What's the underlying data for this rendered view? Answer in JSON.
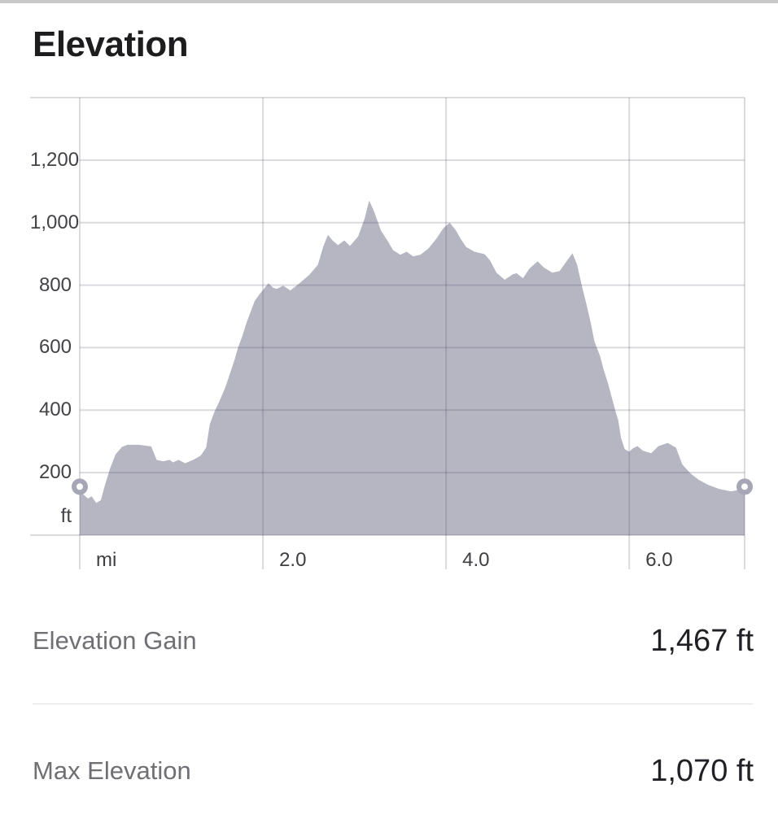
{
  "header": {
    "title": "Elevation"
  },
  "chart_data": {
    "type": "area",
    "title": "Elevation",
    "x_unit": "mi",
    "y_unit": "ft",
    "xlim": [
      0,
      7.26
    ],
    "ylim": [
      0,
      1400
    ],
    "grid": true,
    "y_ticks": [
      1200,
      1000,
      800,
      600,
      400,
      200
    ],
    "y_tick_labels": [
      "1,200",
      "1,000",
      "800",
      "600",
      "400",
      "200"
    ],
    "x_ticks": [
      {
        "value": 0,
        "label": "mi"
      },
      {
        "value": 2,
        "label": "2.0"
      },
      {
        "value": 4,
        "label": "4.0"
      },
      {
        "value": 6,
        "label": "6.0"
      }
    ],
    "x_grid": [
      0,
      2,
      4,
      6,
      7.26
    ],
    "series": [
      {
        "name": "elevation-profile",
        "x": [
          0.0,
          0.04,
          0.09,
          0.13,
          0.18,
          0.23,
          0.27,
          0.33,
          0.39,
          0.46,
          0.52,
          0.64,
          0.78,
          0.84,
          0.91,
          0.98,
          1.02,
          1.08,
          1.15,
          1.24,
          1.32,
          1.38,
          1.42,
          1.47,
          1.53,
          1.59,
          1.64,
          1.69,
          1.73,
          1.78,
          1.82,
          1.87,
          1.91,
          1.96,
          2.0,
          2.06,
          2.11,
          2.15,
          2.22,
          2.3,
          2.4,
          2.51,
          2.6,
          2.66,
          2.71,
          2.76,
          2.82,
          2.89,
          2.95,
          3.04,
          3.11,
          3.16,
          3.21,
          3.29,
          3.37,
          3.42,
          3.5,
          3.57,
          3.64,
          3.72,
          3.81,
          3.9,
          3.97,
          4.04,
          4.11,
          4.16,
          4.22,
          4.31,
          4.42,
          4.48,
          4.55,
          4.64,
          4.73,
          4.77,
          4.84,
          4.91,
          5.0,
          5.07,
          5.16,
          5.24,
          5.31,
          5.38,
          5.43,
          5.48,
          5.53,
          5.58,
          5.62,
          5.68,
          5.72,
          5.77,
          5.81,
          5.85,
          5.88,
          5.91,
          5.95,
          6.0,
          6.04,
          6.09,
          6.15,
          6.24,
          6.32,
          6.42,
          6.51,
          6.58,
          6.67,
          6.76,
          6.86,
          6.98,
          7.11,
          7.2,
          7.26
        ],
        "y": [
          155,
          130,
          117,
          124,
          103,
          112,
          155,
          212,
          258,
          282,
          289,
          289,
          284,
          241,
          236,
          241,
          233,
          241,
          230,
          241,
          254,
          280,
          355,
          394,
          432,
          473,
          517,
          561,
          602,
          641,
          679,
          718,
          749,
          770,
          784,
          806,
          792,
          788,
          798,
          783,
          806,
          834,
          865,
          924,
          961,
          943,
          928,
          943,
          925,
          956,
          1013,
          1070,
          1039,
          974,
          938,
          912,
          897,
          907,
          892,
          897,
          918,
          951,
          982,
          1000,
          974,
          948,
          922,
          907,
          899,
          879,
          840,
          817,
          835,
          838,
          822,
          853,
          876,
          856,
          840,
          845,
          874,
          902,
          866,
          801,
          742,
          680,
          620,
          574,
          530,
          484,
          440,
          396,
          368,
          311,
          275,
          267,
          278,
          285,
          270,
          262,
          285,
          295,
          280,
          226,
          197,
          177,
          161,
          148,
          140,
          145,
          155
        ]
      }
    ],
    "endpoint_markers": {
      "start": {
        "x": 0,
        "y": 155
      },
      "end": {
        "x": 7.26,
        "y": 155
      }
    },
    "colors": {
      "fill": "#b6b6c3",
      "gridline": "rgba(70,70,95,0.20)",
      "marker_ring": "#a6a6b6",
      "marker_center": "#ffffff"
    }
  },
  "stats": {
    "rows": [
      {
        "label": "Elevation Gain",
        "value": "1,467 ft"
      },
      {
        "label": "Max Elevation",
        "value": "1,070 ft"
      }
    ]
  }
}
